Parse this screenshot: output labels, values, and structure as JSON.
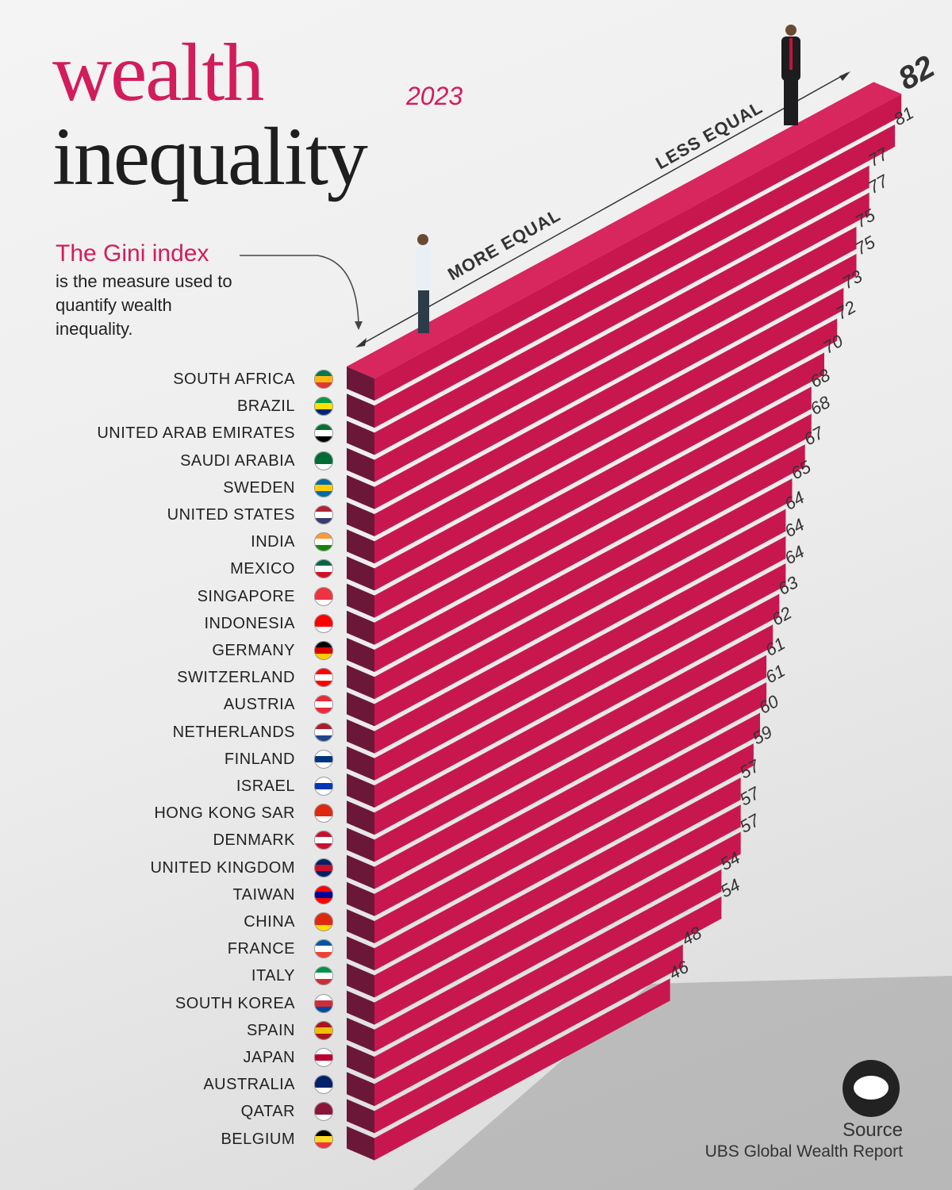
{
  "title": {
    "line1": "wealth",
    "line2": "inequality",
    "year": "2023"
  },
  "description": {
    "heading": "The Gini index",
    "text": "is the measure used to quantify wealth inequality."
  },
  "axis": {
    "low": "MORE EQUAL",
    "high": "LESS EQUAL"
  },
  "source": {
    "label": "Source",
    "text": "UBS Global Wealth Report"
  },
  "colors": {
    "accent": "#d21c5b",
    "bar_face": "#c8174f",
    "bar_cap": "#6b1838"
  },
  "chart_data": {
    "type": "bar",
    "orientation": "isometric-horizontal",
    "categories": [
      "SOUTH AFRICA",
      "BRAZIL",
      "UNITED ARAB EMIRATES",
      "SAUDI ARABIA",
      "SWEDEN",
      "UNITED STATES",
      "INDIA",
      "MEXICO",
      "SINGAPORE",
      "INDONESIA",
      "GERMANY",
      "SWITZERLAND",
      "AUSTRIA",
      "NETHERLANDS",
      "FINLAND",
      "ISRAEL",
      "HONG KONG SAR",
      "DENMARK",
      "UNITED KINGDOM",
      "TAIWAN",
      "CHINA",
      "FRANCE",
      "ITALY",
      "SOUTH KOREA",
      "SPAIN",
      "JAPAN",
      "AUSTRALIA",
      "QATAR",
      "BELGIUM"
    ],
    "values": [
      82,
      81,
      77,
      77,
      75,
      75,
      73,
      72,
      70,
      68,
      68,
      67,
      65,
      64,
      64,
      64,
      63,
      62,
      61,
      61,
      60,
      59,
      57,
      57,
      57,
      54,
      54,
      48,
      46
    ],
    "flags": [
      [
        "#007a4d",
        "#ffb612",
        "#de3831"
      ],
      [
        "#009c3b",
        "#ffdf00",
        "#002776"
      ],
      [
        "#00732f",
        "#ffffff",
        "#000000"
      ],
      [
        "#006c35",
        "#006c35",
        "#ffffff"
      ],
      [
        "#006aa7",
        "#fecc00",
        "#006aa7"
      ],
      [
        "#b22234",
        "#ffffff",
        "#3c3b6e"
      ],
      [
        "#ff9933",
        "#ffffff",
        "#138808"
      ],
      [
        "#006847",
        "#ffffff",
        "#ce1126"
      ],
      [
        "#ef3340",
        "#ef3340",
        "#ffffff"
      ],
      [
        "#ff0000",
        "#ff0000",
        "#ffffff"
      ],
      [
        "#000000",
        "#dd0000",
        "#ffce00"
      ],
      [
        "#ff0000",
        "#ffffff",
        "#ff0000"
      ],
      [
        "#ed2939",
        "#ffffff",
        "#ed2939"
      ],
      [
        "#ae1c28",
        "#ffffff",
        "#21468b"
      ],
      [
        "#ffffff",
        "#003580",
        "#ffffff"
      ],
      [
        "#ffffff",
        "#0038b8",
        "#ffffff"
      ],
      [
        "#de2910",
        "#de2910",
        "#ffffff"
      ],
      [
        "#c8102e",
        "#ffffff",
        "#c8102e"
      ],
      [
        "#012169",
        "#c8102e",
        "#012169"
      ],
      [
        "#fe0000",
        "#000095",
        "#fe0000"
      ],
      [
        "#de2910",
        "#de2910",
        "#ffde00"
      ],
      [
        "#0055a4",
        "#ffffff",
        "#ef4135"
      ],
      [
        "#009246",
        "#ffffff",
        "#ce2b37"
      ],
      [
        "#ffffff",
        "#cd2e3a",
        "#0047a0"
      ],
      [
        "#aa151b",
        "#f1bf00",
        "#aa151b"
      ],
      [
        "#ffffff",
        "#bc002d",
        "#ffffff"
      ],
      [
        "#012169",
        "#012169",
        "#ffffff"
      ],
      [
        "#8a1538",
        "#8a1538",
        "#ffffff"
      ],
      [
        "#000000",
        "#fdda24",
        "#ef3340"
      ]
    ]
  }
}
